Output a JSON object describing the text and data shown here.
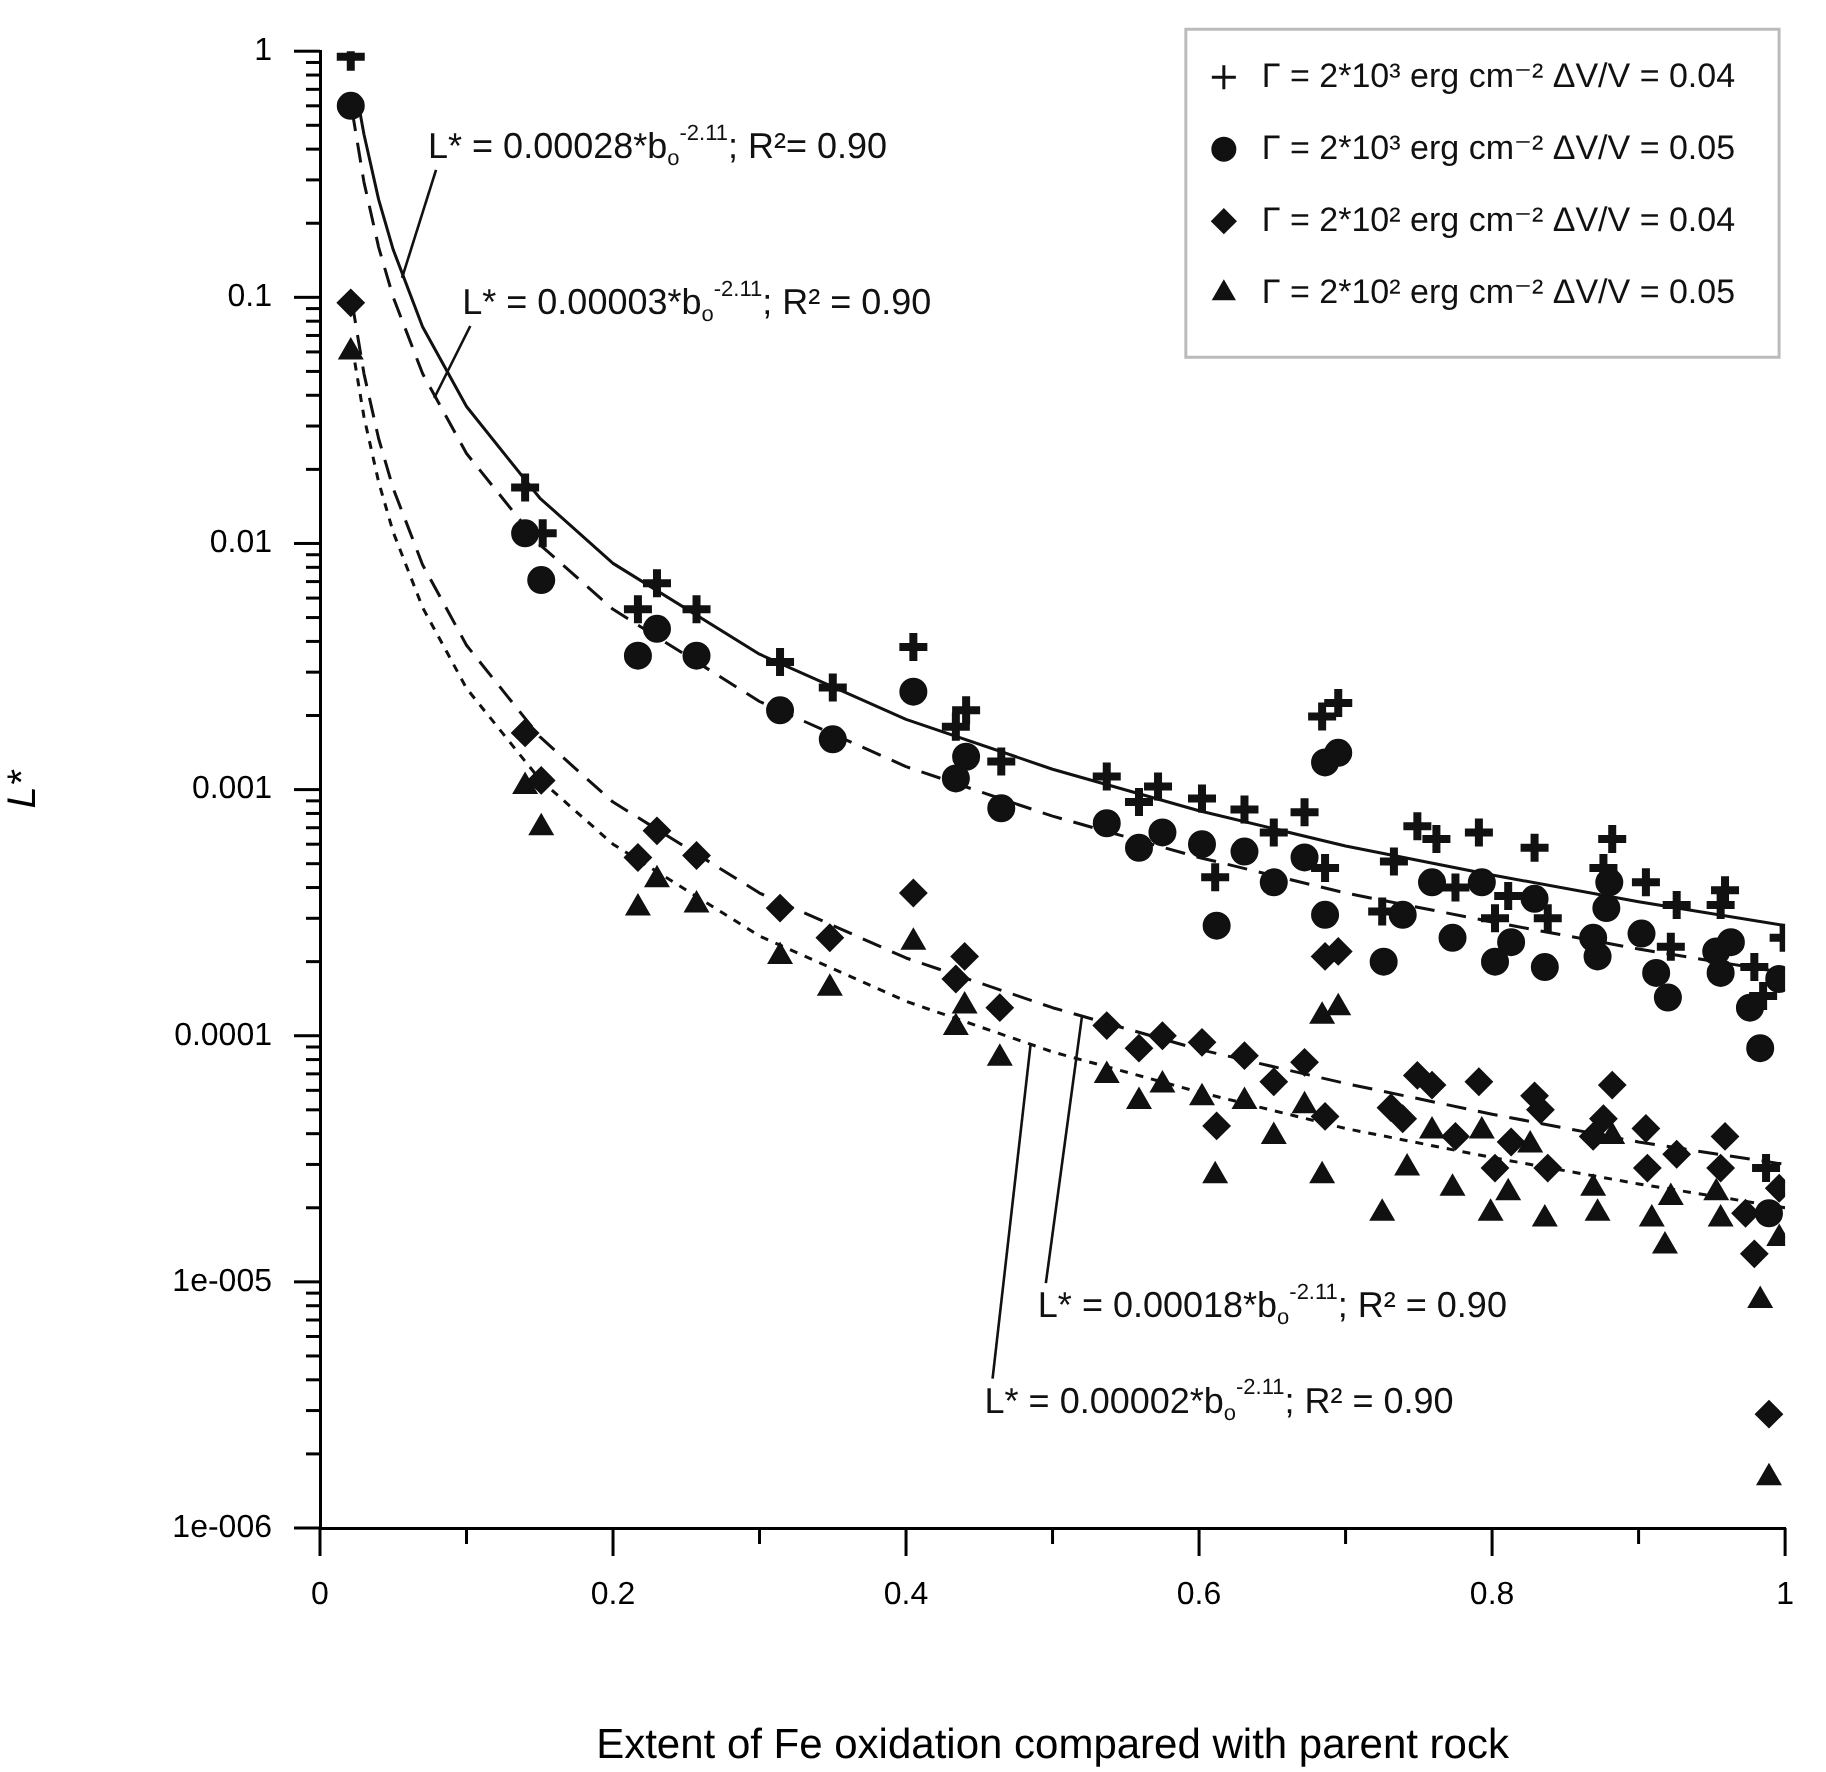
{
  "chart_data": {
    "type": "scatter",
    "xlabel": "Extent of Fe oxidation compared with parent rock",
    "ylabel": "L*",
    "log": "y",
    "legend": "top right",
    "xlim": [
      0,
      1
    ],
    "ylim": [
      1e-06,
      1
    ],
    "xticks": [
      0,
      {
        "value": 0.1,
        "label": null
      },
      0.2,
      {
        "value": 0.3,
        "label": null
      },
      0.4,
      {
        "value": 0.5,
        "label": null
      },
      0.6,
      {
        "value": 0.7,
        "label": null
      },
      0.8,
      {
        "value": 0.9,
        "label": null
      },
      1
    ],
    "yticks": [
      {
        "value": 1e-06,
        "label": "1e-006"
      },
      {
        "value": 2e-06,
        "label": null
      },
      {
        "value": 3e-06,
        "label": null
      },
      {
        "value": 4e-06,
        "label": null
      },
      {
        "value": 5e-06,
        "label": null
      },
      {
        "value": 6e-06,
        "label": null
      },
      {
        "value": 7e-06,
        "label": null
      },
      {
        "value": 8e-06,
        "label": null
      },
      {
        "value": 9e-06,
        "label": null
      },
      {
        "value": 1e-05,
        "label": "1e-005"
      },
      {
        "value": 2e-05,
        "label": null
      },
      {
        "value": 3e-05,
        "label": null
      },
      {
        "value": 4e-05,
        "label": null
      },
      {
        "value": 5e-05,
        "label": null
      },
      {
        "value": 6e-05,
        "label": null
      },
      {
        "value": 7e-05,
        "label": null
      },
      {
        "value": 8e-05,
        "label": null
      },
      {
        "value": 9e-05,
        "label": null
      },
      0.0001,
      {
        "value": 0.0002,
        "label": null
      },
      {
        "value": 0.0003,
        "label": null
      },
      {
        "value": 0.0004,
        "label": null
      },
      {
        "value": 0.0005,
        "label": null
      },
      {
        "value": 0.0006,
        "label": null
      },
      {
        "value": 0.0007,
        "label": null
      },
      {
        "value": 0.0008,
        "label": null
      },
      {
        "value": 0.0009,
        "label": null
      },
      0.001,
      {
        "value": 0.002,
        "label": null
      },
      {
        "value": 0.003,
        "label": null
      },
      {
        "value": 0.004,
        "label": null
      },
      {
        "value": 0.005,
        "label": null
      },
      {
        "value": 0.006,
        "label": null
      },
      {
        "value": 0.007,
        "label": null
      },
      {
        "value": 0.008,
        "label": null
      },
      {
        "value": 0.009,
        "label": null
      },
      0.01,
      {
        "value": 0.02,
        "label": null
      },
      {
        "value": 0.03,
        "label": null
      },
      {
        "value": 0.04,
        "label": null
      },
      {
        "value": 0.05,
        "label": null
      },
      {
        "value": 0.06,
        "label": null
      },
      {
        "value": 0.07,
        "label": null
      },
      {
        "value": 0.08,
        "label": null
      },
      {
        "value": 0.09,
        "label": null
      },
      0.1,
      {
        "value": 0.2,
        "label": null
      },
      {
        "value": 0.3,
        "label": null
      },
      {
        "value": 0.4,
        "label": null
      },
      {
        "value": 0.5,
        "label": null
      },
      {
        "value": 0.6,
        "label": null
      },
      {
        "value": 0.7,
        "label": null
      },
      {
        "value": 0.8,
        "label": null
      },
      {
        "value": 0.9,
        "label": null
      },
      1
    ],
    "series": [
      {
        "name": "Γ = 2*10³ erg cm⁻² ΔV/V = 0.04",
        "color": "#111111",
        "marker": "cross",
        "x": [
          0.021,
          0.14,
          0.152,
          0.217,
          0.23,
          0.257,
          0.314,
          0.35,
          0.405,
          0.441,
          0.434,
          0.465,
          0.537,
          0.559,
          0.572,
          0.602,
          0.631,
          0.611,
          0.651,
          0.672,
          0.684,
          0.695,
          0.686,
          0.733,
          0.749,
          0.762,
          0.791,
          0.775,
          0.725,
          0.829,
          0.811,
          0.802,
          0.838,
          0.882,
          0.876,
          0.905,
          0.926,
          0.922,
          0.959,
          0.956,
          0.979,
          0.985,
          0.999,
          0.987
        ],
        "values": [
          0.95,
          0.0169,
          0.011,
          0.0054,
          0.0069,
          0.0054,
          0.0033,
          0.0026,
          0.0038,
          0.0021,
          0.0018,
          0.0013,
          0.00113,
          0.00089,
          0.00103,
          0.00092,
          0.00083,
          0.00044,
          0.00067,
          0.00081,
          0.00198,
          0.00225,
          0.00048,
          0.00051,
          0.00071,
          0.00063,
          0.00067,
          0.0004,
          0.00032,
          0.00058,
          0.00037,
          0.0003,
          0.0003,
          0.00063,
          0.00048,
          0.00042,
          0.00034,
          0.00023,
          0.00039,
          0.00034,
          0.00019,
          0.000145,
          0.00025,
          2.9e-05
        ]
      },
      {
        "name": "Γ = 2*10³ erg cm⁻² ΔV/V = 0.05",
        "color": "#111111",
        "marker": "circle",
        "x": [
          0.021,
          0.14,
          0.151,
          0.23,
          0.217,
          0.257,
          0.314,
          0.35,
          0.405,
          0.441,
          0.434,
          0.465,
          0.537,
          0.559,
          0.575,
          0.602,
          0.612,
          0.631,
          0.651,
          0.672,
          0.686,
          0.695,
          0.686,
          0.726,
          0.739,
          0.759,
          0.773,
          0.793,
          0.802,
          0.813,
          0.836,
          0.829,
          0.869,
          0.872,
          0.878,
          0.88,
          0.902,
          0.912,
          0.92,
          0.926,
          0.953,
          0.956,
          0.963,
          0.976,
          0.983,
          0.996,
          0.989
        ],
        "values": [
          0.6,
          0.011,
          0.0071,
          0.0045,
          0.0035,
          0.0035,
          0.0021,
          0.0016,
          0.0025,
          0.00136,
          0.00111,
          0.00084,
          0.00073,
          0.00058,
          0.00067,
          0.0006,
          0.00028,
          0.00056,
          0.00042,
          0.00053,
          0.00129,
          0.00141,
          0.00031,
          0.0002,
          0.00031,
          0.00042,
          0.00025,
          0.00042,
          0.0002,
          0.00024,
          0.00019,
          0.00036,
          0.00025,
          0.00021,
          0.00033,
          0.00042,
          0.00026,
          0.00018,
          0.000143,
          null,
          0.00022,
          0.00018,
          0.00024,
          0.00013,
          8.9e-05,
          0.00017,
          1.9e-05
        ]
      },
      {
        "name": "Γ = 2*10² erg cm⁻² ΔV/V = 0.04",
        "color": "#111111",
        "marker": "diamond",
        "x": [
          0.021,
          0.14,
          0.151,
          0.23,
          0.217,
          0.257,
          0.314,
          0.348,
          0.405,
          0.44,
          0.434,
          0.464,
          0.537,
          0.559,
          0.575,
          0.602,
          0.631,
          0.612,
          0.651,
          0.672,
          0.686,
          0.695,
          0.686,
          0.731,
          0.749,
          0.759,
          0.739,
          0.775,
          0.791,
          0.802,
          0.813,
          0.829,
          0.833,
          0.838,
          0.869,
          0.876,
          0.882,
          0.905,
          0.906,
          0.926,
          0.959,
          0.956,
          0.973,
          0.979,
          0.989,
          0.996
        ],
        "values": [
          0.095,
          0.0017,
          0.00109,
          0.00068,
          0.00053,
          0.00054,
          0.00033,
          0.00025,
          0.00038,
          0.00021,
          0.00017,
          0.00013,
          0.00011,
          8.9e-05,
          0.0001,
          9.4e-05,
          8.3e-05,
          4.3e-05,
          6.5e-05,
          7.8e-05,
          0.00021,
          0.00022,
          4.7e-05,
          5.1e-05,
          6.9e-05,
          6.3e-05,
          4.6e-05,
          3.9e-05,
          6.5e-05,
          2.9e-05,
          3.7e-05,
          5.7e-05,
          5e-05,
          2.9e-05,
          3.9e-05,
          4.6e-05,
          6.3e-05,
          4.2e-05,
          2.9e-05,
          3.3e-05,
          3.9e-05,
          2.9e-05,
          1.9e-05,
          1.3e-05,
          2.9e-06,
          2.4e-05
        ]
      },
      {
        "name": "Γ = 2*10² erg cm⁻² ΔV/V = 0.05",
        "color": "#111111",
        "marker": "triangle",
        "x": [
          0.021,
          0.14,
          0.151,
          0.23,
          0.217,
          0.257,
          0.314,
          0.348,
          0.405,
          0.44,
          0.434,
          0.464,
          0.537,
          0.559,
          0.575,
          0.602,
          0.631,
          0.611,
          0.651,
          0.672,
          0.684,
          0.684,
          0.695,
          0.725,
          0.742,
          0.759,
          0.773,
          0.793,
          0.799,
          0.811,
          0.826,
          0.833,
          0.836,
          0.869,
          0.872,
          0.882,
          0.905,
          0.909,
          0.918,
          0.922,
          0.953,
          0.956,
          0.973,
          0.983,
          0.996,
          0.989
        ],
        "values": [
          0.06,
          0.00103,
          0.0007,
          0.00043,
          0.00033,
          0.00034,
          0.00021,
          0.000156,
          0.00024,
          0.000132,
          0.000108,
          8.1e-05,
          6.9e-05,
          5.4e-05,
          6.3e-05,
          5.6e-05,
          5.4e-05,
          2.7e-05,
          3.9e-05,
          5.2e-05,
          2.7e-05,
          0.00012,
          0.00013,
          1.9e-05,
          2.9e-05,
          4.1e-05,
          2.4e-05,
          4.1e-05,
          1.9e-05,
          2.3e-05,
          3.6e-05,
          null,
          1.8e-05,
          2.4e-05,
          1.9e-05,
          3.9e-05,
          null,
          1.8e-05,
          1.4e-05,
          2.2e-05,
          2.3e-05,
          1.8e-05,
          null,
          8.4e-06,
          1.5e-05,
          1.6e-06
        ]
      },
      {
        "type": "line",
        "color": "#111111",
        "line_style": "solid",
        "x": [
          0.025,
          0.03,
          0.04,
          0.05,
          0.07,
          0.1,
          0.15,
          0.2,
          0.3,
          0.4,
          0.5,
          0.6,
          0.7,
          0.8,
          0.9,
          1
        ],
        "values": [
          0.67,
          0.46,
          0.25,
          0.156,
          0.076,
          0.036,
          0.0153,
          0.0083,
          0.00355,
          0.00193,
          0.00121,
          0.00082,
          0.00059,
          0.00045,
          0.00035,
          0.00028
        ]
      },
      {
        "type": "line",
        "color": "#111111",
        "line_style": "dashed",
        "x": [
          0.022,
          0.03,
          0.04,
          0.05,
          0.07,
          0.1,
          0.15,
          0.2,
          0.3,
          0.4,
          0.5,
          0.6,
          0.7,
          0.8,
          0.9,
          1
        ],
        "values": [
          0.57,
          0.294,
          0.16,
          0.1,
          0.049,
          0.0232,
          0.0099,
          0.0054,
          0.00228,
          0.00124,
          0.00078,
          0.00053,
          0.00038,
          0.00029,
          0.000225,
          0.00018
        ]
      },
      {
        "type": "line",
        "color": "#111111",
        "line_style": "dashed",
        "x": [
          0.022,
          0.03,
          0.04,
          0.05,
          0.07,
          0.1,
          0.15,
          0.2,
          0.3,
          0.4,
          0.5,
          0.6,
          0.7,
          0.8,
          0.9,
          1
        ],
        "values": [
          0.0945,
          0.049,
          0.0267,
          0.0167,
          0.0082,
          0.00386,
          0.00164,
          0.00089,
          0.00038,
          0.000207,
          0.00013,
          8.8e-05,
          6.4e-05,
          4.8e-05,
          3.7e-05,
          3e-05
        ]
      },
      {
        "type": "line",
        "color": "#111111",
        "line_style": "dotted",
        "x": [
          0.022,
          0.03,
          0.04,
          0.05,
          0.07,
          0.1,
          0.15,
          0.2,
          0.3,
          0.4,
          0.5,
          0.6,
          0.7,
          0.8,
          0.9,
          1
        ],
        "values": [
          0.063,
          0.0327,
          0.0178,
          0.0111,
          0.0055,
          0.00258,
          0.0011,
          0.0006,
          0.000254,
          0.000138,
          8.6e-05,
          5.9e-05,
          4.2e-05,
          3.2e-05,
          2.5e-05,
          2e-05
        ]
      }
    ],
    "annotations": [
      {
        "text": "L* = 0.00028*b$_{o}$$^{-2.11}$; R²= 0.90",
        "x": 0.056,
        "y": 0.12
      },
      {
        "text": "L* = 0.00003*b$_{o}$$^{-2.11}$; R² = 0.90",
        "x": 0.078,
        "y": 0.039
      },
      {
        "text": "L* = 0.00018*b$_{o}$$^{-2.11}$; R² = 0.90",
        "x": 0.52,
        "y": 0.000119
      },
      {
        "text": "L* = 0.00002*b$_{o}$$^{-2.11}$; R² = 0.90",
        "x": 0.485,
        "y": 9.2e-05
      }
    ]
  }
}
